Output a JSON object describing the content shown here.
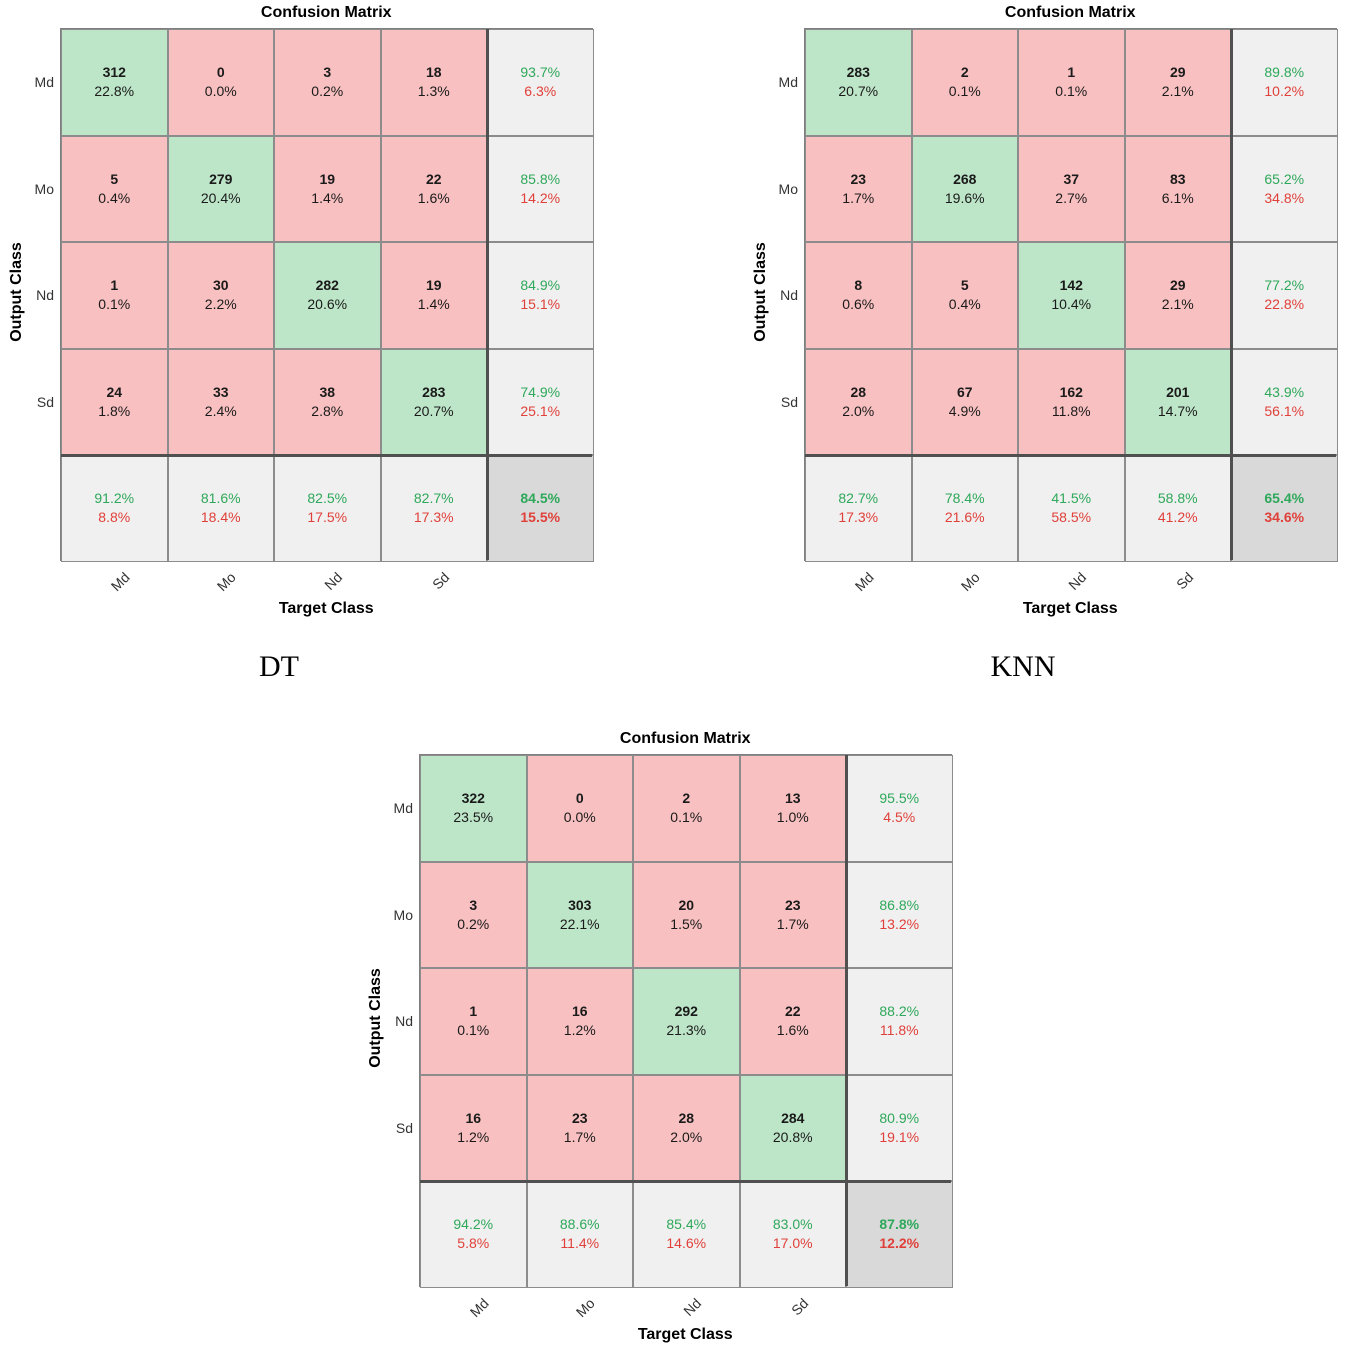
{
  "chart_data": [
    {
      "type": "heatmap",
      "title": "Confusion Matrix",
      "caption": "DT",
      "xlabel": "Target Class",
      "ylabel": "Output Class",
      "classes": [
        "Md",
        "Mo",
        "Nd",
        "Sd"
      ],
      "counts": [
        [
          312,
          0,
          3,
          18
        ],
        [
          5,
          279,
          19,
          22
        ],
        [
          1,
          30,
          282,
          19
        ],
        [
          24,
          33,
          38,
          283
        ]
      ],
      "cell_pct": [
        [
          "22.8%",
          "0.0%",
          "0.2%",
          "1.3%"
        ],
        [
          "0.4%",
          "20.4%",
          "1.4%",
          "1.6%"
        ],
        [
          "0.1%",
          "2.2%",
          "20.6%",
          "1.4%"
        ],
        [
          "1.8%",
          "2.4%",
          "2.8%",
          "20.7%"
        ]
      ],
      "row_summary": [
        [
          "93.7%",
          "6.3%"
        ],
        [
          "85.8%",
          "14.2%"
        ],
        [
          "84.9%",
          "15.1%"
        ],
        [
          "74.9%",
          "25.1%"
        ]
      ],
      "col_summary": [
        [
          "91.2%",
          "8.8%"
        ],
        [
          "81.6%",
          "18.4%"
        ],
        [
          "82.5%",
          "17.5%"
        ],
        [
          "82.7%",
          "17.3%"
        ]
      ],
      "overall": [
        "84.5%",
        "15.5%"
      ]
    },
    {
      "type": "heatmap",
      "title": "Confusion Matrix",
      "caption": "KNN",
      "xlabel": "Target Class",
      "ylabel": "Output Class",
      "classes": [
        "Md",
        "Mo",
        "Nd",
        "Sd"
      ],
      "counts": [
        [
          283,
          2,
          1,
          29
        ],
        [
          23,
          268,
          37,
          83
        ],
        [
          8,
          5,
          142,
          29
        ],
        [
          28,
          67,
          162,
          201
        ]
      ],
      "cell_pct": [
        [
          "20.7%",
          "0.1%",
          "0.1%",
          "2.1%"
        ],
        [
          "1.7%",
          "19.6%",
          "2.7%",
          "6.1%"
        ],
        [
          "0.6%",
          "0.4%",
          "10.4%",
          "2.1%"
        ],
        [
          "2.0%",
          "4.9%",
          "11.8%",
          "14.7%"
        ]
      ],
      "row_summary": [
        [
          "89.8%",
          "10.2%"
        ],
        [
          "65.2%",
          "34.8%"
        ],
        [
          "77.2%",
          "22.8%"
        ],
        [
          "43.9%",
          "56.1%"
        ]
      ],
      "col_summary": [
        [
          "82.7%",
          "17.3%"
        ],
        [
          "78.4%",
          "21.6%"
        ],
        [
          "41.5%",
          "58.5%"
        ],
        [
          "58.8%",
          "41.2%"
        ]
      ],
      "overall": [
        "65.4%",
        "34.6%"
      ]
    },
    {
      "type": "heatmap",
      "title": "Confusion Matrix",
      "caption": "",
      "xlabel": "Target Class",
      "ylabel": "Output Class",
      "classes": [
        "Md",
        "Mo",
        "Nd",
        "Sd"
      ],
      "counts": [
        [
          322,
          0,
          2,
          13
        ],
        [
          3,
          303,
          20,
          23
        ],
        [
          1,
          16,
          292,
          22
        ],
        [
          16,
          23,
          28,
          284
        ]
      ],
      "cell_pct": [
        [
          "23.5%",
          "0.0%",
          "0.1%",
          "1.0%"
        ],
        [
          "0.2%",
          "22.1%",
          "1.5%",
          "1.7%"
        ],
        [
          "0.1%",
          "1.2%",
          "21.3%",
          "1.6%"
        ],
        [
          "1.2%",
          "1.7%",
          "2.0%",
          "20.8%"
        ]
      ],
      "row_summary": [
        [
          "95.5%",
          "4.5%"
        ],
        [
          "86.8%",
          "13.2%"
        ],
        [
          "88.2%",
          "11.8%"
        ],
        [
          "80.9%",
          "19.1%"
        ]
      ],
      "col_summary": [
        [
          "94.2%",
          "5.8%"
        ],
        [
          "88.6%",
          "11.4%"
        ],
        [
          "85.4%",
          "14.6%"
        ],
        [
          "83.0%",
          "17.0%"
        ]
      ],
      "overall": [
        "87.8%",
        "12.2%"
      ]
    }
  ]
}
